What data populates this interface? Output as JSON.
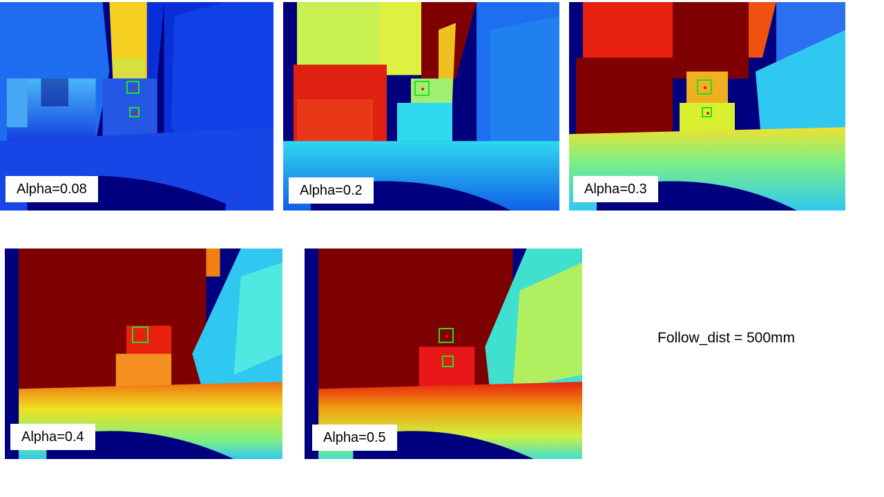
{
  "figures": [
    {
      "caption": "Alpha=0.08",
      "colors": {
        "background": "#00007f",
        "wall": "#1e6cf0",
        "wall_dark": "#0a2fd8",
        "center": "#f5d020",
        "left": "#49a8f5",
        "floor": "#1846e6",
        "chair": "#2656e6"
      }
    },
    {
      "caption": "Alpha=0.2",
      "colors": {
        "background": "#00007f",
        "wall": "#c8f050",
        "wall_dark": "#e0f040",
        "center": "#7f0000",
        "left": "#e02010",
        "floor": "#21a8f8",
        "chair": "#30d8f0"
      }
    },
    {
      "caption": "Alpha=0.3",
      "colors": {
        "background": "#00007f",
        "wall": "#e82010",
        "wall_dark": "#7f0000",
        "center": "#7f0000",
        "left": "#7f0000",
        "floor": "#58e8c8",
        "chair": "#d8f030"
      }
    },
    {
      "caption": "Alpha=0.4",
      "colors": {
        "background": "#00007f",
        "wall": "#7f0000",
        "wall_dark": "#7f0000",
        "center": "#7f0000",
        "left": "#7f0000",
        "floor": "#f0a010",
        "chair": "#f59020"
      }
    },
    {
      "caption": "Alpha=0.5",
      "colors": {
        "background": "#00007f",
        "wall": "#7f0000",
        "wall_dark": "#7f0000",
        "center": "#7f0000",
        "left": "#7f0000",
        "floor": "#f06010",
        "chair": "#e81818"
      }
    }
  ],
  "markers": {
    "box_color": "#22e022",
    "dot_color": "#e01020"
  },
  "annotation": {
    "text": "Follow_dist = 500mm"
  }
}
